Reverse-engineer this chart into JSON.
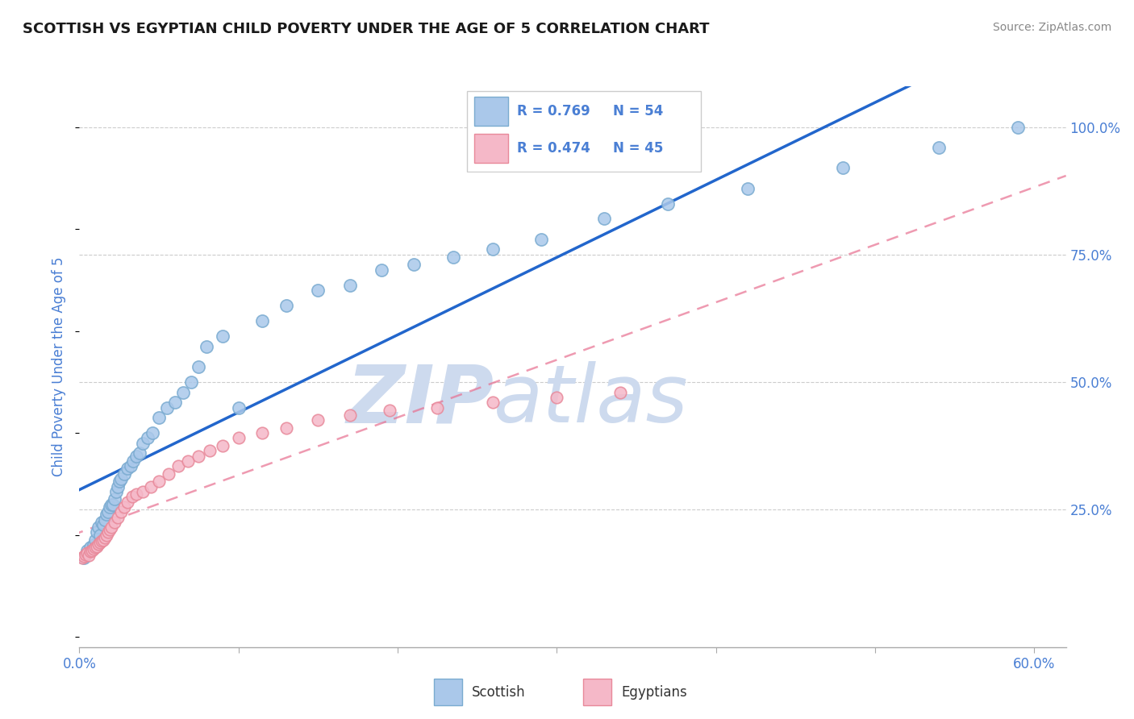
{
  "title": "SCOTTISH VS EGYPTIAN CHILD POVERTY UNDER THE AGE OF 5 CORRELATION CHART",
  "source": "Source: ZipAtlas.com",
  "ylabel": "Child Poverty Under the Age of 5",
  "xlim": [
    0.0,
    0.62
  ],
  "ylim": [
    -0.02,
    1.08
  ],
  "yticks_right": [
    0.25,
    0.5,
    0.75,
    1.0
  ],
  "yticklabels_right": [
    "25.0%",
    "50.0%",
    "75.0%",
    "100.0%"
  ],
  "grid_color": "#cccccc",
  "watermark": "ZIPatlas",
  "watermark_color": "#cddaee",
  "title_color": "#1a1a1a",
  "title_fontsize": 13,
  "tick_color": "#4a7fd4",
  "scottish_color": "#aac8ea",
  "scottish_edge_color": "#7aabd0",
  "egyptian_color": "#f5b8c8",
  "egyptian_edge_color": "#e8899a",
  "scottish_line_color": "#2266cc",
  "egyptian_line_color": "#e87090",
  "scottish_x": [
    0.003,
    0.005,
    0.007,
    0.009,
    0.01,
    0.011,
    0.012,
    0.013,
    0.014,
    0.015,
    0.016,
    0.017,
    0.018,
    0.019,
    0.02,
    0.021,
    0.022,
    0.023,
    0.024,
    0.025,
    0.026,
    0.028,
    0.03,
    0.032,
    0.034,
    0.036,
    0.038,
    0.04,
    0.043,
    0.046,
    0.05,
    0.055,
    0.06,
    0.065,
    0.07,
    0.075,
    0.08,
    0.09,
    0.1,
    0.115,
    0.13,
    0.15,
    0.17,
    0.19,
    0.21,
    0.235,
    0.26,
    0.29,
    0.33,
    0.37,
    0.42,
    0.48,
    0.54,
    0.59
  ],
  "scottish_y": [
    0.155,
    0.17,
    0.175,
    0.18,
    0.19,
    0.205,
    0.215,
    0.2,
    0.225,
    0.22,
    0.23,
    0.24,
    0.245,
    0.255,
    0.26,
    0.26,
    0.27,
    0.285,
    0.295,
    0.305,
    0.31,
    0.32,
    0.33,
    0.335,
    0.345,
    0.355,
    0.36,
    0.38,
    0.39,
    0.4,
    0.43,
    0.45,
    0.46,
    0.48,
    0.5,
    0.53,
    0.57,
    0.59,
    0.45,
    0.62,
    0.65,
    0.68,
    0.69,
    0.72,
    0.73,
    0.745,
    0.76,
    0.78,
    0.82,
    0.85,
    0.88,
    0.92,
    0.96,
    1.0
  ],
  "egyptian_x": [
    0.002,
    0.003,
    0.004,
    0.005,
    0.006,
    0.007,
    0.008,
    0.009,
    0.01,
    0.011,
    0.012,
    0.013,
    0.014,
    0.015,
    0.016,
    0.017,
    0.018,
    0.019,
    0.02,
    0.022,
    0.024,
    0.026,
    0.028,
    0.03,
    0.033,
    0.036,
    0.04,
    0.045,
    0.05,
    0.056,
    0.062,
    0.068,
    0.075,
    0.082,
    0.09,
    0.1,
    0.115,
    0.13,
    0.15,
    0.17,
    0.195,
    0.225,
    0.26,
    0.3,
    0.34
  ],
  "egyptian_y": [
    0.155,
    0.158,
    0.162,
    0.165,
    0.16,
    0.168,
    0.17,
    0.172,
    0.175,
    0.178,
    0.182,
    0.185,
    0.188,
    0.19,
    0.195,
    0.2,
    0.205,
    0.21,
    0.215,
    0.225,
    0.235,
    0.245,
    0.255,
    0.265,
    0.275,
    0.28,
    0.285,
    0.295,
    0.305,
    0.32,
    0.335,
    0.345,
    0.355,
    0.365,
    0.375,
    0.39,
    0.4,
    0.41,
    0.425,
    0.435,
    0.445,
    0.45,
    0.46,
    0.47,
    0.48
  ]
}
